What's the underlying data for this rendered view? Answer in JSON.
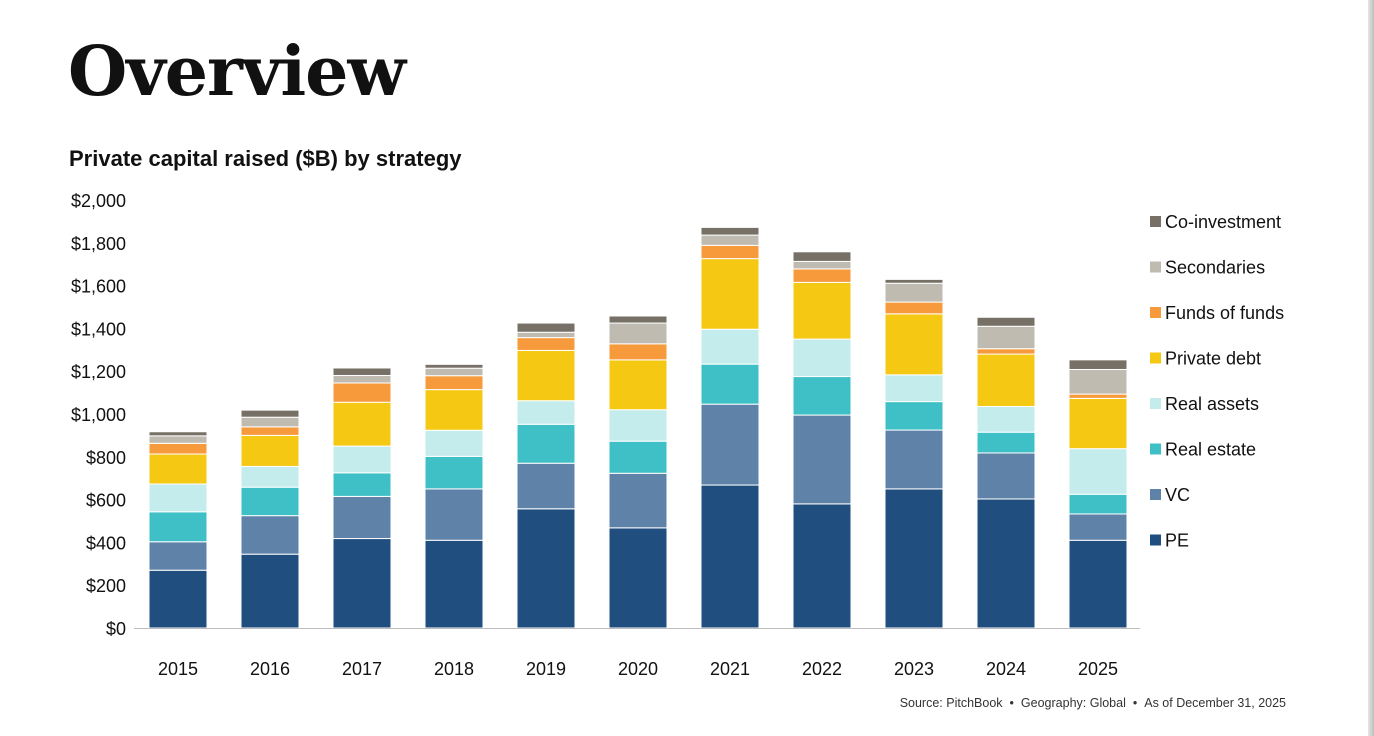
{
  "page": {
    "title": "Overview"
  },
  "source": {
    "source_text": "Source: PitchBook",
    "geography_text": "Geography: Global",
    "as_of_text": "As of December 31, 2025",
    "separator": "•"
  },
  "chart_data": {
    "type": "bar",
    "stacked": true,
    "title": "Private capital raised ($B) by strategy",
    "xlabel": "",
    "ylabel": "",
    "ylim": [
      0,
      2000
    ],
    "yticks": [
      0,
      200,
      400,
      600,
      800,
      1000,
      1200,
      1400,
      1600,
      1800,
      2000
    ],
    "ytick_labels": [
      "$0",
      "$200",
      "$400",
      "$600",
      "$800",
      "$1,000",
      "$1,200",
      "$1,400",
      "$1,600",
      "$1,800",
      "$2,000"
    ],
    "grid": false,
    "legend_position": "right",
    "categories": [
      "2015",
      "2016",
      "2017",
      "2018",
      "2019",
      "2020",
      "2021",
      "2022",
      "2023",
      "2024",
      "2025"
    ],
    "series": [
      {
        "name": "PE",
        "color": "#1f4e7f",
        "values": [
          270,
          345,
          418,
          410,
          557,
          468,
          668,
          580,
          650,
          603,
          410
        ]
      },
      {
        "name": "VC",
        "color": "#5f83a8",
        "values": [
          133,
          180,
          197,
          240,
          213,
          255,
          378,
          415,
          275,
          215,
          123
        ]
      },
      {
        "name": "Real estate",
        "color": "#3fc0c6",
        "values": [
          140,
          133,
          110,
          152,
          182,
          150,
          187,
          180,
          133,
          97,
          92
        ]
      },
      {
        "name": "Real assets",
        "color": "#c5ecec",
        "values": [
          130,
          97,
          125,
          122,
          110,
          147,
          163,
          175,
          125,
          120,
          213
        ]
      },
      {
        "name": "Private debt",
        "color": "#f5c814",
        "values": [
          140,
          145,
          205,
          190,
          235,
          233,
          330,
          265,
          285,
          245,
          235
        ]
      },
      {
        "name": "Funds of funds",
        "color": "#f79a3c",
        "values": [
          50,
          40,
          90,
          65,
          60,
          75,
          62,
          63,
          55,
          25,
          20
        ]
      },
      {
        "name": "Secondaries",
        "color": "#bfbbb1",
        "values": [
          35,
          45,
          35,
          35,
          25,
          97,
          48,
          35,
          88,
          105,
          115
        ]
      },
      {
        "name": "Co-investment",
        "color": "#767066",
        "values": [
          19,
          33,
          35,
          18,
          43,
          33,
          36,
          45,
          18,
          42,
          45
        ]
      }
    ]
  }
}
